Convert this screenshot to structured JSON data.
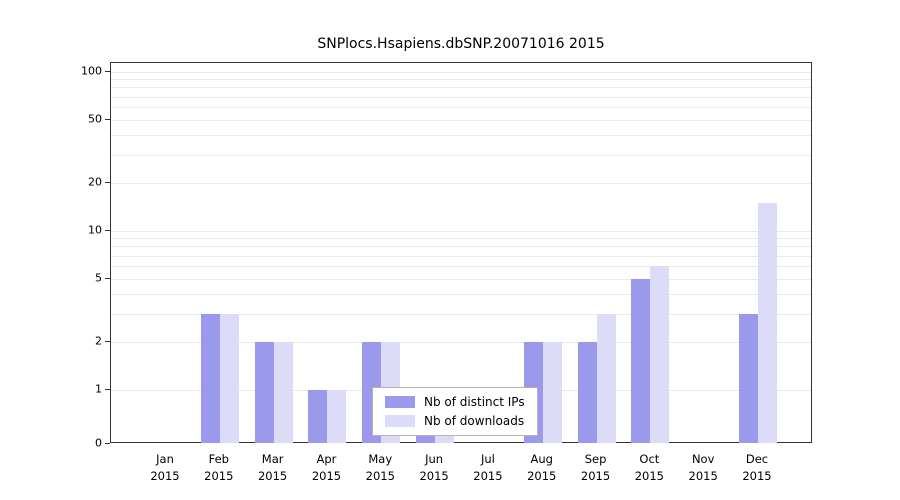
{
  "title": "SNPlocs.Hsapiens.dbSNP.20071016 2015",
  "colors": {
    "distinct_ips": "#9a99ec",
    "downloads": "#dcdcf8",
    "axis": "#333333",
    "grid": "#e9e9e9"
  },
  "legend": {
    "items": [
      {
        "label": "Nb of distinct IPs",
        "series": "distinct_ips"
      },
      {
        "label": "Nb of downloads",
        "series": "downloads"
      }
    ]
  },
  "chart_data": {
    "type": "bar",
    "title": "SNPlocs.Hsapiens.dbSNP.20071016 2015",
    "categories": [
      "Jan",
      "Feb",
      "Mar",
      "Apr",
      "May",
      "Jun",
      "Jul",
      "Aug",
      "Sep",
      "Oct",
      "Nov",
      "Dec"
    ],
    "year": "2015",
    "series": [
      {
        "name": "Nb of distinct IPs",
        "color": "#9a99ec",
        "values": [
          0,
          3,
          2,
          1,
          2,
          1,
          0,
          2,
          2,
          5,
          0,
          3
        ]
      },
      {
        "name": "Nb of downloads",
        "color": "#dcdcf8",
        "values": [
          0,
          3,
          2,
          1,
          2,
          1,
          0,
          2,
          3,
          6,
          0,
          15
        ]
      }
    ],
    "y_ticks": [
      0,
      1,
      2,
      5,
      10,
      20,
      50,
      100
    ],
    "y_scale": "log",
    "ylim": [
      0,
      100
    ],
    "grid": true,
    "legend_position": "bottom-center"
  }
}
